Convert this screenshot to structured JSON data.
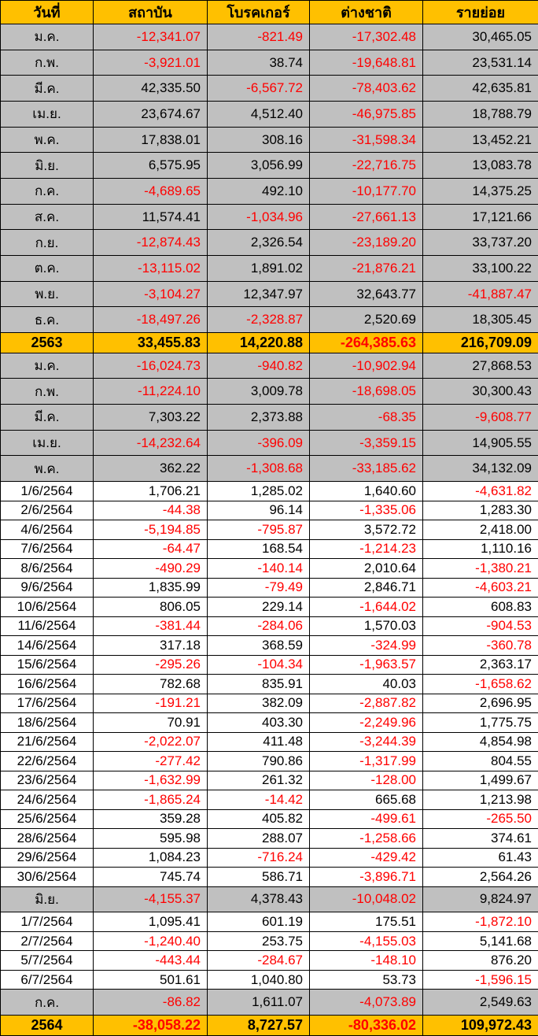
{
  "colors": {
    "header_bg": "#FFC000",
    "year_row_bg": "#FFC000",
    "month_row_bg": "#C0C0C0",
    "day_row_bg": "#FFFFFF",
    "negative_text": "#FF0000",
    "positive_text": "#000000",
    "border": "#000000"
  },
  "chart_data": {
    "type": "table",
    "columns": [
      "วันที่",
      "สถาบัน",
      "โบรคเกอร์",
      "ต่างชาติ",
      "รายย่อย"
    ],
    "rows": [
      {
        "type": "month",
        "label": "ม.ค.",
        "values": [
          "-12,341.07",
          "-821.49",
          "-17,302.48",
          "30,465.05"
        ]
      },
      {
        "type": "month",
        "label": "ก.พ.",
        "values": [
          "-3,921.01",
          "38.74",
          "-19,648.81",
          "23,531.14"
        ]
      },
      {
        "type": "month",
        "label": "มี.ค.",
        "values": [
          "42,335.50",
          "-6,567.72",
          "-78,403.62",
          "42,635.81"
        ]
      },
      {
        "type": "month",
        "label": "เม.ย.",
        "values": [
          "23,674.67",
          "4,512.40",
          "-46,975.85",
          "18,788.79"
        ]
      },
      {
        "type": "month",
        "label": "พ.ค.",
        "values": [
          "17,838.01",
          "308.16",
          "-31,598.34",
          "13,452.21"
        ]
      },
      {
        "type": "month",
        "label": "มิ.ย.",
        "values": [
          "6,575.95",
          "3,056.99",
          "-22,716.75",
          "13,083.78"
        ]
      },
      {
        "type": "month",
        "label": "ก.ค.",
        "values": [
          "-4,689.65",
          "492.10",
          "-10,177.70",
          "14,375.25"
        ]
      },
      {
        "type": "month",
        "label": "ส.ค.",
        "values": [
          "11,574.41",
          "-1,034.96",
          "-27,661.13",
          "17,121.66"
        ]
      },
      {
        "type": "month",
        "label": "ก.ย.",
        "values": [
          "-12,874.43",
          "2,326.54",
          "-23,189.20",
          "33,737.20"
        ]
      },
      {
        "type": "month",
        "label": "ต.ค.",
        "values": [
          "-13,115.02",
          "1,891.02",
          "-21,876.21",
          "33,100.22"
        ]
      },
      {
        "type": "month",
        "label": "พ.ย.",
        "values": [
          "-3,104.27",
          "12,347.97",
          "32,643.77",
          "-41,887.47"
        ]
      },
      {
        "type": "month",
        "label": "ธ.ค.",
        "values": [
          "-18,497.26",
          "-2,328.87",
          "2,520.69",
          "18,305.45"
        ]
      },
      {
        "type": "year",
        "label": "2563",
        "values": [
          "33,455.83",
          "14,220.88",
          "-264,385.63",
          "216,709.09"
        ]
      },
      {
        "type": "month",
        "label": "ม.ค.",
        "values": [
          "-16,024.73",
          "-940.82",
          "-10,902.94",
          "27,868.53"
        ]
      },
      {
        "type": "month",
        "label": "ก.พ.",
        "values": [
          "-11,224.10",
          "3,009.78",
          "-18,698.05",
          "30,300.43"
        ]
      },
      {
        "type": "month",
        "label": "มี.ค.",
        "values": [
          "7,303.22",
          "2,373.88",
          "-68.35",
          "-9,608.77"
        ]
      },
      {
        "type": "month",
        "label": "เม.ย.",
        "values": [
          "-14,232.64",
          "-396.09",
          "-3,359.15",
          "14,905.55"
        ]
      },
      {
        "type": "month",
        "label": "พ.ค.",
        "values": [
          "362.22",
          "-1,308.68",
          "-33,185.62",
          "34,132.09"
        ]
      },
      {
        "type": "day",
        "label": "1/6/2564",
        "values": [
          "1,706.21",
          "1,285.02",
          "1,640.60",
          "-4,631.82"
        ]
      },
      {
        "type": "day",
        "label": "2/6/2564",
        "values": [
          "-44.38",
          "96.14",
          "-1,335.06",
          "1,283.30"
        ]
      },
      {
        "type": "day",
        "label": "4/6/2564",
        "values": [
          "-5,194.85",
          "-795.87",
          "3,572.72",
          "2,418.00"
        ]
      },
      {
        "type": "day",
        "label": "7/6/2564",
        "values": [
          "-64.47",
          "168.54",
          "-1,214.23",
          "1,110.16"
        ]
      },
      {
        "type": "day",
        "label": "8/6/2564",
        "values": [
          "-490.29",
          "-140.14",
          "2,010.64",
          "-1,380.21"
        ]
      },
      {
        "type": "day",
        "label": "9/6/2564",
        "values": [
          "1,835.99",
          "-79.49",
          "2,846.71",
          "-4,603.21"
        ]
      },
      {
        "type": "day",
        "label": "10/6/2564",
        "values": [
          "806.05",
          "229.14",
          "-1,644.02",
          "608.83"
        ]
      },
      {
        "type": "day",
        "label": "11/6/2564",
        "values": [
          "-381.44",
          "-284.06",
          "1,570.03",
          "-904.53"
        ]
      },
      {
        "type": "day",
        "label": "14/6/2564",
        "values": [
          "317.18",
          "368.59",
          "-324.99",
          "-360.78"
        ]
      },
      {
        "type": "day",
        "label": "15/6/2564",
        "values": [
          "-295.26",
          "-104.34",
          "-1,963.57",
          "2,363.17"
        ]
      },
      {
        "type": "day",
        "label": "16/6/2564",
        "values": [
          "782.68",
          "835.91",
          "40.03",
          "-1,658.62"
        ]
      },
      {
        "type": "day",
        "label": "17/6/2564",
        "values": [
          "-191.21",
          "382.09",
          "-2,887.82",
          "2,696.95"
        ]
      },
      {
        "type": "day",
        "label": "18/6/2564",
        "values": [
          "70.91",
          "403.30",
          "-2,249.96",
          "1,775.75"
        ]
      },
      {
        "type": "day",
        "label": "21/6/2564",
        "values": [
          "-2,022.07",
          "411.48",
          "-3,244.39",
          "4,854.98"
        ]
      },
      {
        "type": "day",
        "label": "22/6/2564",
        "values": [
          "-277.42",
          "790.86",
          "-1,317.99",
          "804.55"
        ]
      },
      {
        "type": "day",
        "label": "23/6/2564",
        "values": [
          "-1,632.99",
          "261.32",
          "-128.00",
          "1,499.67"
        ]
      },
      {
        "type": "day",
        "label": "24/6/2564",
        "values": [
          "-1,865.24",
          "-14.42",
          "665.68",
          "1,213.98"
        ]
      },
      {
        "type": "day",
        "label": "25/6/2564",
        "values": [
          "359.28",
          "405.82",
          "-499.61",
          "-265.50"
        ]
      },
      {
        "type": "day",
        "label": "28/6/2564",
        "values": [
          "595.98",
          "288.07",
          "-1,258.66",
          "374.61"
        ]
      },
      {
        "type": "day",
        "label": "29/6/2564",
        "values": [
          "1,084.23",
          "-716.24",
          "-429.42",
          "61.43"
        ]
      },
      {
        "type": "day",
        "label": "30/6/2564",
        "values": [
          "745.74",
          "586.71",
          "-3,896.71",
          "2,564.26"
        ]
      },
      {
        "type": "month",
        "label": "มิ.ย.",
        "values": [
          "-4,155.37",
          "4,378.43",
          "-10,048.02",
          "9,824.97"
        ]
      },
      {
        "type": "day",
        "label": "1/7/2564",
        "values": [
          "1,095.41",
          "601.19",
          "175.51",
          "-1,872.10"
        ]
      },
      {
        "type": "day",
        "label": "2/7/2564",
        "values": [
          "-1,240.40",
          "253.75",
          "-4,155.03",
          "5,141.68"
        ]
      },
      {
        "type": "day",
        "label": "5/7/2564",
        "values": [
          "-443.44",
          "-284.67",
          "-148.10",
          "876.20"
        ]
      },
      {
        "type": "day",
        "label": "6/7/2564",
        "values": [
          "501.61",
          "1,040.80",
          "53.73",
          "-1,596.15"
        ]
      },
      {
        "type": "month",
        "label": "ก.ค.",
        "values": [
          "-86.82",
          "1,611.07",
          "-4,073.89",
          "2,549.63"
        ]
      },
      {
        "type": "year",
        "label": "2564",
        "values": [
          "-38,058.22",
          "8,727.57",
          "-80,336.02",
          "109,972.43"
        ]
      }
    ]
  }
}
